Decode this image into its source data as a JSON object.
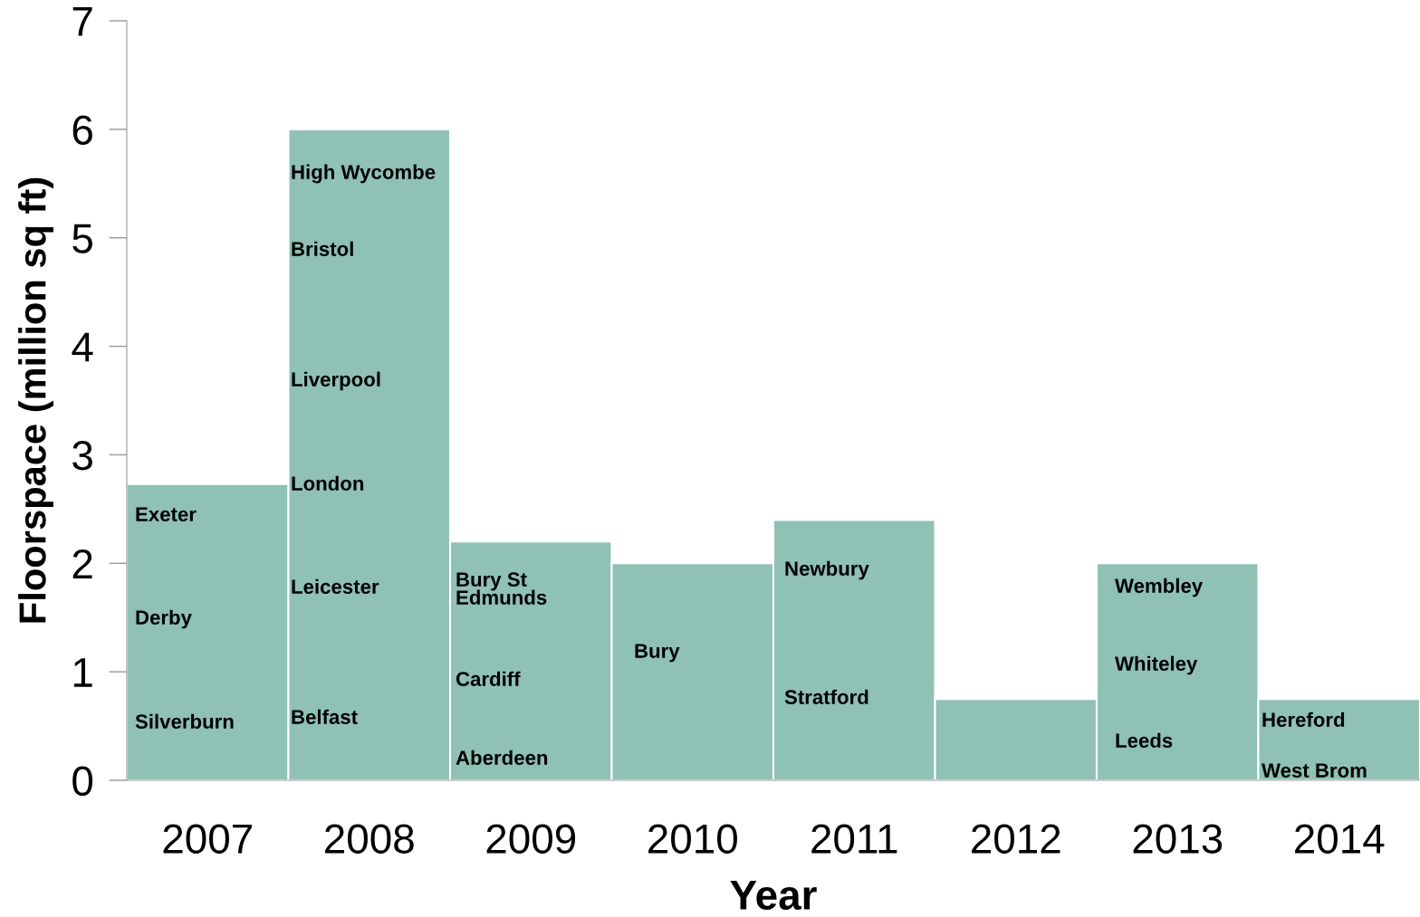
{
  "chart_data": {
    "type": "bar",
    "xlabel": "Year",
    "ylabel": "Floorspace (million sq ft)",
    "categories": [
      "2007",
      "2008",
      "2009",
      "2010",
      "2011",
      "2012",
      "2013",
      "2014"
    ],
    "values": [
      2.73,
      6.0,
      2.2,
      2.0,
      2.4,
      0.75,
      2.0,
      0.75
    ],
    "color": "#8fc1b5",
    "ylim": [
      0,
      7
    ],
    "yticks": [
      0,
      1,
      2,
      3,
      4,
      5,
      6,
      7
    ],
    "grid": false,
    "legend": false,
    "annotations": [
      "Exeter",
      "Derby",
      "Silverburn",
      "High Wycombe",
      "Bristol",
      "Liverpool",
      "London",
      "Leicester",
      "Belfast",
      "Bury St\nEdmunds",
      "Cardiff",
      "Aberdeen",
      "Bury",
      "Newbury",
      "Stratford",
      "Wembley",
      "Whiteley",
      "Leeds",
      "Hereford",
      "West Brom"
    ]
  }
}
